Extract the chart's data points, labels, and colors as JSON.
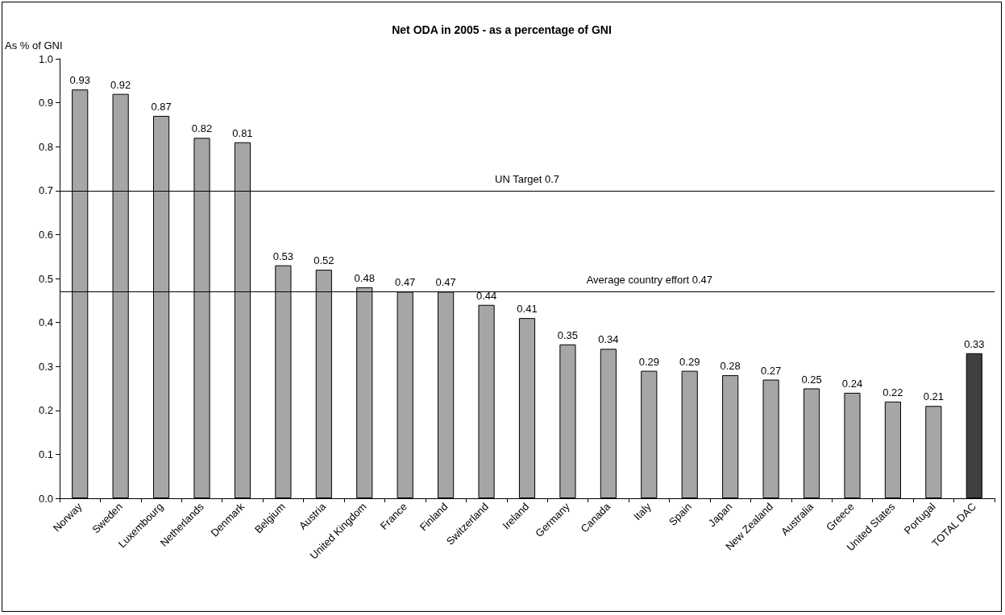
{
  "chart_data": {
    "type": "bar",
    "title": "Net ODA in 2005 - as a percentage of GNI",
    "ylabel": "As % of GNI",
    "categories": [
      "Norway",
      "Sweden",
      "Luxembourg",
      "Netherlands",
      "Denmark",
      "Belgium",
      "Austria",
      "United Kingdom",
      "France",
      "Finland",
      "Switzerland",
      "Ireland",
      "Germany",
      "Canada",
      "Italy",
      "Spain",
      "Japan",
      "New Zealand",
      "Australia",
      "Greece",
      "United States",
      "Portugal",
      "TOTAL DAC"
    ],
    "values": [
      0.93,
      0.92,
      0.87,
      0.82,
      0.81,
      0.53,
      0.52,
      0.48,
      0.47,
      0.47,
      0.44,
      0.41,
      0.35,
      0.34,
      0.29,
      0.29,
      0.28,
      0.27,
      0.25,
      0.24,
      0.22,
      0.21,
      0.33
    ],
    "colors": [
      "#a6a6a6",
      "#a6a6a6",
      "#a6a6a6",
      "#a6a6a6",
      "#a6a6a6",
      "#a6a6a6",
      "#a6a6a6",
      "#a6a6a6",
      "#a6a6a6",
      "#a6a6a6",
      "#a6a6a6",
      "#a6a6a6",
      "#a6a6a6",
      "#a6a6a6",
      "#a6a6a6",
      "#a6a6a6",
      "#a6a6a6",
      "#a6a6a6",
      "#a6a6a6",
      "#a6a6a6",
      "#a6a6a6",
      "#a6a6a6",
      "#404040"
    ],
    "ylim": [
      0,
      1
    ],
    "yticks": [
      {
        "value": 0,
        "label": "0.0"
      },
      0.1,
      0.2,
      0.3,
      0.4,
      0.5,
      0.6,
      0.7,
      0.8,
      0.9,
      {
        "value": 1,
        "label": "1.0"
      }
    ],
    "ref_lines": [
      {
        "axis": "y",
        "value": 0.7,
        "label": "UN Target 0.7",
        "color": "#000000"
      },
      {
        "axis": "y",
        "value": 0.47,
        "label": "Average country effort 0.47",
        "color": "#000000"
      }
    ],
    "data_labels": true,
    "grid": false
  }
}
